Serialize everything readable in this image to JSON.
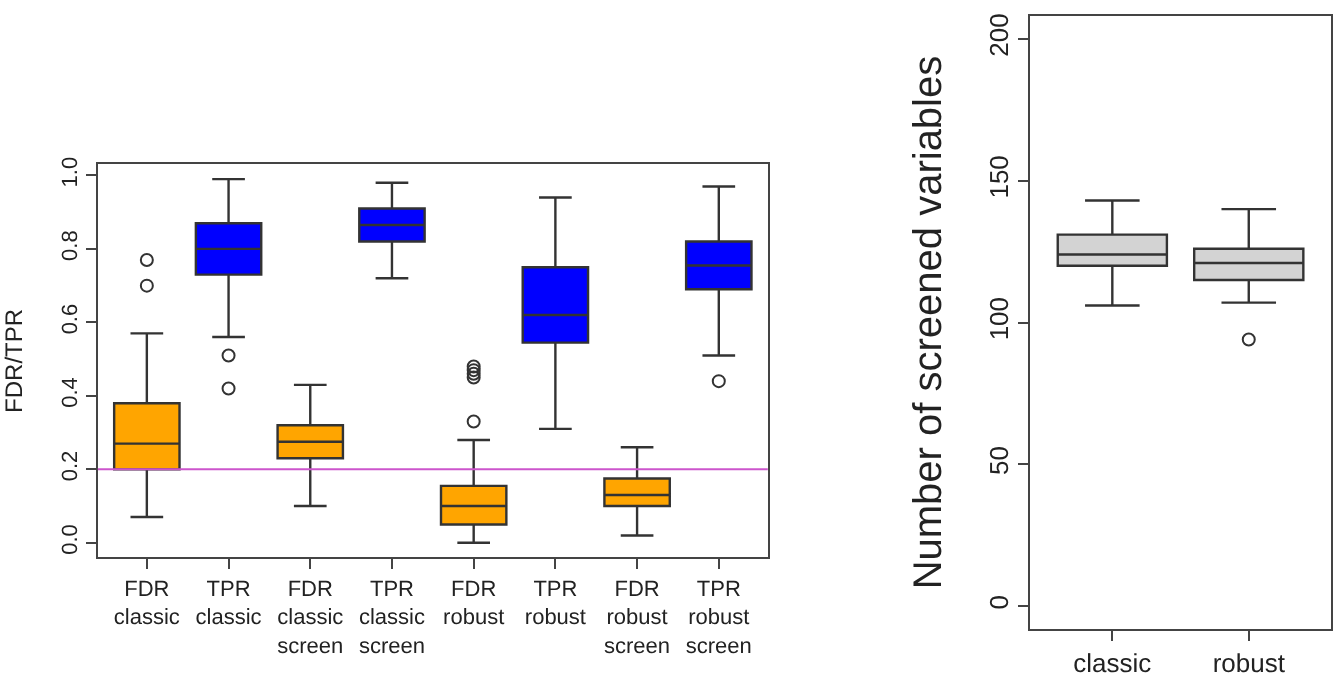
{
  "chart_data": [
    {
      "type": "box",
      "ylabel": "FDR/TPR",
      "categories": [
        "FDR\nclassic",
        "TPR\nclassic",
        "FDR\nclassic\nscreen",
        "TPR\nclassic\nscreen",
        "FDR\nrobust",
        "TPR\nrobust",
        "FDR\nrobust\nscreen",
        "TPR\nrobust\nscreen"
      ],
      "colors": [
        "#ffa500",
        "#0000ff",
        "#ffa500",
        "#0000ff",
        "#ffa500",
        "#0000ff",
        "#ffa500",
        "#0000ff"
      ],
      "boxes": [
        {
          "low": 0.07,
          "q1": 0.2,
          "median": 0.27,
          "q3": 0.38,
          "high": 0.57,
          "outliers": [
            0.7,
            0.77
          ]
        },
        {
          "low": 0.56,
          "q1": 0.73,
          "median": 0.8,
          "q3": 0.87,
          "high": 0.99,
          "outliers": [
            0.51,
            0.42
          ]
        },
        {
          "low": 0.1,
          "q1": 0.23,
          "median": 0.275,
          "q3": 0.32,
          "high": 0.43
        },
        {
          "low": 0.72,
          "q1": 0.82,
          "median": 0.865,
          "q3": 0.91,
          "high": 0.98
        },
        {
          "low": 0.0,
          "q1": 0.05,
          "median": 0.1,
          "q3": 0.155,
          "high": 0.28,
          "outliers": [
            0.33,
            0.45,
            0.46,
            0.47,
            0.48
          ]
        },
        {
          "low": 0.31,
          "q1": 0.545,
          "median": 0.62,
          "q3": 0.75,
          "high": 0.94
        },
        {
          "low": 0.02,
          "q1": 0.1,
          "median": 0.13,
          "q3": 0.175,
          "high": 0.26
        },
        {
          "low": 0.51,
          "q1": 0.69,
          "median": 0.755,
          "q3": 0.82,
          "high": 0.97,
          "outliers": [
            0.44
          ]
        }
      ],
      "ylim": [
        -0.04,
        1.03
      ],
      "yticks": [
        {
          "value": 0,
          "label": "0.0"
        },
        {
          "value": 0.2,
          "label": "0.2"
        },
        {
          "value": 0.4,
          "label": "0.4"
        },
        {
          "value": 0.6,
          "label": "0.6"
        },
        {
          "value": 0.8,
          "label": "0.8"
        },
        {
          "value": 1,
          "label": "1.0"
        }
      ],
      "ref_lines": [
        {
          "axis": "y",
          "value": 0.2,
          "color": "#cc55cc"
        }
      ]
    },
    {
      "type": "box",
      "ylabel": "Number of screened variables",
      "categories": [
        "classic",
        "robust"
      ],
      "colors": [
        "#d3d3d3",
        "#d3d3d3"
      ],
      "boxes": [
        {
          "low": 106,
          "q1": 120,
          "median": 124,
          "q3": 131,
          "high": 143
        },
        {
          "low": 107,
          "q1": 115,
          "median": 121,
          "q3": 126,
          "high": 140,
          "outliers": [
            94
          ]
        }
      ],
      "ylim": [
        -8,
        208
      ],
      "yticks": [
        0,
        50,
        100,
        150,
        200
      ]
    }
  ]
}
